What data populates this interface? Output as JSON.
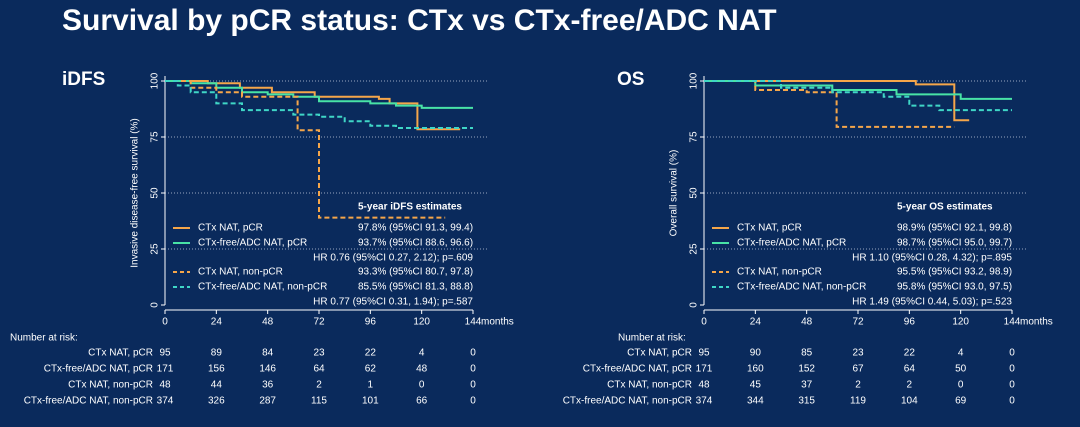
{
  "title": "Survival by pCR status: CTx vs CTx-free/ADC NAT",
  "chart_data": [
    {
      "type": "line",
      "title": "iDFS",
      "y_label": "Invasive disease-free survival (%)",
      "x_label": "months",
      "xlim": [
        0,
        144
      ],
      "xticks": [
        0,
        24,
        48,
        72,
        96,
        120,
        144
      ],
      "ylim": [
        0,
        100
      ],
      "yticks": [
        0,
        25,
        50,
        75,
        100
      ],
      "grid": true,
      "estimates_title": "5-year iDFS estimates",
      "hr": [
        "HR 0.76 (95%CI 0.27, 2.12); p=.609",
        "HR 0.77 (95%CI 0.31, 1.94); p=.587"
      ],
      "at_risk_label": "Number at risk:",
      "series": [
        {
          "name": "CTx NAT, pCR",
          "color": "#f5a64a",
          "dashed": false,
          "estimate": "97.8% (95%CI 91.3, 99.4)",
          "x": [
            0,
            20,
            20,
            35,
            35,
            50,
            50,
            70,
            70,
            100,
            100,
            105,
            105,
            118,
            118,
            138
          ],
          "values": [
            100,
            100,
            99,
            99,
            97,
            97,
            95,
            95,
            93,
            93,
            92,
            92,
            90,
            90,
            78.5,
            78.5
          ],
          "at_risk": [
            95,
            89,
            84,
            23,
            22,
            4,
            0
          ]
        },
        {
          "name": "CTx-free/ADC NAT, pCR",
          "color": "#48e3a6",
          "dashed": false,
          "estimate": "93.7% (95%CI 88.6, 96.6)",
          "x": [
            0,
            12,
            12,
            24,
            24,
            36,
            36,
            48,
            48,
            60,
            60,
            72,
            72,
            96,
            96,
            108,
            108,
            120,
            120,
            144
          ],
          "values": [
            100,
            100,
            99,
            99,
            97,
            97,
            95,
            95,
            94,
            94,
            93,
            93,
            91,
            91,
            90,
            90,
            89,
            89,
            88,
            88
          ],
          "at_risk": [
            171,
            156,
            146,
            64,
            62,
            48,
            0
          ]
        },
        {
          "name": "CTx NAT, non-pCR",
          "color": "#f5a64a",
          "dashed": true,
          "estimate": "93.3% (95%CI 80.7, 97.8)",
          "x": [
            0,
            12,
            12,
            24,
            24,
            36,
            36,
            62,
            62,
            72,
            72,
            131
          ],
          "values": [
            100,
            100,
            97,
            97,
            95,
            95,
            93,
            93,
            78,
            78,
            39,
            39
          ],
          "at_risk": [
            48,
            44,
            36,
            2,
            1,
            0,
            0
          ]
        },
        {
          "name": "CTx-free/ADC NAT, non-pCR",
          "color": "#3fd6c6",
          "dashed": true,
          "estimate": "85.5% (95%CI 81.3, 88.8)",
          "x": [
            0,
            6,
            6,
            12,
            12,
            24,
            24,
            36,
            36,
            60,
            60,
            72,
            72,
            84,
            84,
            96,
            96,
            108,
            108,
            144
          ],
          "values": [
            100,
            100,
            98,
            98,
            95,
            95,
            90,
            90,
            87,
            87,
            85,
            85,
            84,
            84,
            82,
            82,
            80,
            80,
            79,
            79
          ],
          "at_risk": [
            374,
            326,
            287,
            115,
            101,
            66,
            0
          ]
        }
      ]
    },
    {
      "type": "line",
      "title": "OS",
      "y_label": "Overall survival (%)",
      "x_label": "months",
      "xlim": [
        0,
        144
      ],
      "xticks": [
        0,
        24,
        48,
        72,
        96,
        120,
        144
      ],
      "ylim": [
        0,
        100
      ],
      "yticks": [
        0,
        25,
        50,
        75,
        100
      ],
      "grid": true,
      "estimates_title": "5-year OS estimates",
      "hr": [
        "HR 1.10 (95%CI 0.28, 4.32); p=.895",
        "HR 1.49 (95%CI 0.44, 5.03); p=.523"
      ],
      "at_risk_label": "Number at risk:",
      "series": [
        {
          "name": "CTx NAT, pCR",
          "color": "#f5a64a",
          "dashed": false,
          "estimate": "98.9% (95%CI 92.1, 99.8)",
          "x": [
            0,
            99,
            99,
            117,
            117,
            124
          ],
          "values": [
            100,
            100,
            98.5,
            98.5,
            82.5,
            82.5
          ],
          "at_risk": [
            95,
            90,
            85,
            23,
            22,
            4,
            0
          ]
        },
        {
          "name": "CTx-free/ADC NAT, pCR",
          "color": "#48e3a6",
          "dashed": false,
          "estimate": "98.7% (95%CI 95.0, 99.7)",
          "x": [
            0,
            24,
            24,
            60,
            60,
            90,
            90,
            120,
            120,
            144
          ],
          "values": [
            100,
            100,
            98,
            98,
            96,
            96,
            94,
            94,
            92,
            92
          ],
          "at_risk": [
            171,
            160,
            152,
            67,
            64,
            50,
            0
          ]
        },
        {
          "name": "CTx NAT, non-pCR",
          "color": "#f5a64a",
          "dashed": true,
          "estimate": "95.5% (95%CI 93.2, 98.9)",
          "x": [
            0,
            24,
            24,
            48,
            48,
            62,
            62,
            117
          ],
          "values": [
            100,
            100,
            96,
            96,
            95,
            95,
            79.5,
            79.5
          ],
          "at_risk": [
            48,
            45,
            37,
            2,
            2,
            0,
            0
          ]
        },
        {
          "name": "CTx-free/ADC NAT, non-pCR",
          "color": "#3fd6c6",
          "dashed": true,
          "estimate": "95.8% (95%CI 93.0, 97.5)",
          "x": [
            0,
            36,
            36,
            60,
            60,
            84,
            84,
            96,
            96,
            110,
            110,
            144
          ],
          "values": [
            100,
            100,
            97,
            97,
            95,
            95,
            93,
            93,
            89,
            89,
            87,
            87
          ],
          "at_risk": [
            374,
            344,
            315,
            119,
            104,
            69,
            0
          ]
        }
      ]
    }
  ]
}
